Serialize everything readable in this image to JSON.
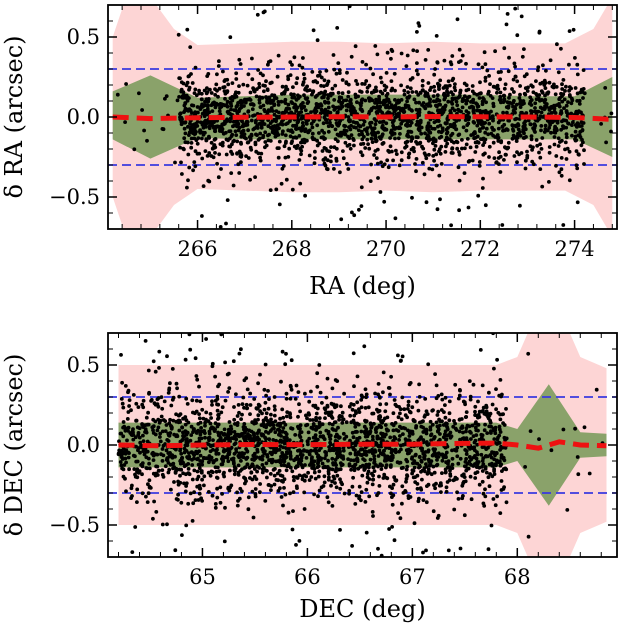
{
  "chart_data": [
    {
      "type": "scatter",
      "xlabel": "RA (deg)",
      "ylabel": "δ RA (arcsec)",
      "xlim": [
        264.1,
        274.9
      ],
      "ylim": [
        -0.7,
        0.7
      ],
      "xticks": [
        266,
        268,
        270,
        272,
        274
      ],
      "xtick_labels": [
        "266",
        "268",
        "270",
        "272",
        "274"
      ],
      "yticks": [
        -0.5,
        0.0,
        0.5
      ],
      "ytick_labels": [
        "−0.5",
        "0.0",
        "0.5"
      ],
      "reference_lines": [
        0.3,
        -0.3
      ],
      "median": {
        "x": [
          264.2,
          265.0,
          266.0,
          267.0,
          268.0,
          269.0,
          270.0,
          271.0,
          272.0,
          273.0,
          274.0,
          274.8
        ],
        "y": [
          0.0,
          -0.01,
          -0.005,
          -0.002,
          0.0,
          0.002,
          0.0,
          0.003,
          0.001,
          0.0,
          -0.003,
          -0.015
        ]
      },
      "inner_band": {
        "x": [
          264.2,
          265.0,
          266.0,
          267.0,
          268.0,
          269.0,
          270.0,
          271.0,
          272.0,
          273.0,
          274.0,
          274.8
        ],
        "upper": [
          0.16,
          0.26,
          0.12,
          0.13,
          0.14,
          0.14,
          0.14,
          0.14,
          0.14,
          0.13,
          0.13,
          0.25
        ],
        "lower": [
          -0.14,
          -0.26,
          -0.13,
          -0.14,
          -0.14,
          -0.14,
          -0.14,
          -0.14,
          -0.14,
          -0.14,
          -0.14,
          -0.25
        ]
      },
      "outer_band": {
        "x": [
          264.2,
          264.6,
          265.0,
          265.5,
          266.0,
          267.0,
          268.0,
          269.0,
          270.0,
          271.0,
          272.0,
          273.0,
          273.8,
          274.4,
          274.8
        ],
        "upper": [
          0.5,
          0.85,
          0.75,
          0.55,
          0.45,
          0.46,
          0.47,
          0.47,
          0.46,
          0.47,
          0.46,
          0.46,
          0.46,
          0.55,
          0.75
        ],
        "lower": [
          -0.5,
          -0.85,
          -0.75,
          -0.55,
          -0.45,
          -0.46,
          -0.47,
          -0.47,
          -0.46,
          -0.47,
          -0.46,
          -0.46,
          -0.46,
          -0.55,
          -0.75
        ]
      },
      "points": {
        "x_range": [
          264.3,
          274.8
        ],
        "x_dense_range": [
          265.6,
          274.2
        ],
        "sigma": 0.14,
        "count": 2300
      },
      "colors": {
        "points": "#000000",
        "median": "#ee1111",
        "reference": "#3a3ae0",
        "inner_band": "#8aa26a",
        "outer_band": "#fdd5d5"
      }
    },
    {
      "type": "scatter",
      "xlabel": "DEC (deg)",
      "ylabel": "δ DEC (arcsec)",
      "xlim": [
        64.1,
        68.95
      ],
      "ylim": [
        -0.7,
        0.7
      ],
      "xticks": [
        65,
        66,
        67,
        68
      ],
      "xtick_labels": [
        "65",
        "66",
        "67",
        "68"
      ],
      "yticks": [
        -0.5,
        0.0,
        0.5
      ],
      "ytick_labels": [
        "−0.5",
        "0.0",
        "0.5"
      ],
      "reference_lines": [
        0.3,
        -0.3
      ],
      "median": {
        "x": [
          64.2,
          64.6,
          65.0,
          65.5,
          66.0,
          66.5,
          67.0,
          67.5,
          67.8,
          68.0,
          68.2,
          68.4,
          68.6,
          68.85
        ],
        "y": [
          0.0,
          -0.005,
          0.0,
          0.003,
          0.002,
          0.005,
          0.005,
          0.01,
          0.012,
          0.0,
          -0.02,
          0.02,
          0.0,
          -0.005
        ]
      },
      "inner_band": {
        "x": [
          64.2,
          64.6,
          65.0,
          65.5,
          66.0,
          66.5,
          67.0,
          67.5,
          67.8,
          68.0,
          68.3,
          68.6,
          68.85
        ],
        "upper": [
          0.14,
          0.14,
          0.14,
          0.14,
          0.14,
          0.14,
          0.14,
          0.14,
          0.14,
          0.1,
          0.38,
          0.08,
          0.07
        ],
        "lower": [
          -0.14,
          -0.14,
          -0.14,
          -0.14,
          -0.14,
          -0.14,
          -0.14,
          -0.14,
          -0.14,
          -0.1,
          -0.38,
          -0.08,
          -0.07
        ]
      },
      "outer_band": {
        "x": [
          64.2,
          64.6,
          65.0,
          65.5,
          66.0,
          66.5,
          67.0,
          67.5,
          67.8,
          68.0,
          68.2,
          68.4,
          68.6,
          68.85
        ],
        "upper": [
          0.5,
          0.5,
          0.5,
          0.5,
          0.5,
          0.5,
          0.5,
          0.5,
          0.5,
          0.55,
          0.85,
          0.85,
          0.55,
          0.48
        ],
        "lower": [
          -0.5,
          -0.5,
          -0.5,
          -0.5,
          -0.5,
          -0.5,
          -0.5,
          -0.5,
          -0.5,
          -0.55,
          -0.85,
          -0.85,
          -0.55,
          -0.48
        ]
      },
      "points": {
        "x_range": [
          64.2,
          68.85
        ],
        "x_dense_range": [
          64.2,
          67.9
        ],
        "sigma": 0.16,
        "count": 2300
      },
      "colors": {
        "points": "#000000",
        "median": "#ee1111",
        "reference": "#3a3ae0",
        "inner_band": "#8aa26a",
        "outer_band": "#fdd5d5"
      }
    }
  ]
}
